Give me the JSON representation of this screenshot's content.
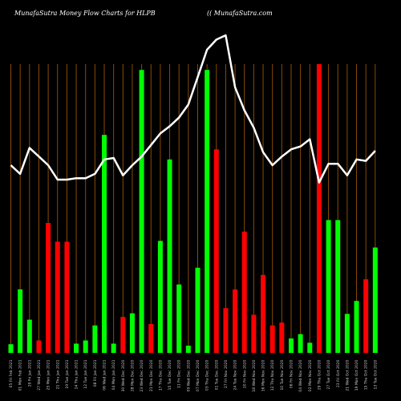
{
  "header": {
    "left": "MunafaSutra  Money Flow  Charts for HLPB",
    "right": "(( MunafaSutra.com"
  },
  "colors": {
    "background": "#000000",
    "grid": "#8a4b08",
    "up": "#00ff00",
    "down": "#ff0000",
    "line": "#ffffff"
  },
  "chart_data": {
    "type": "bar",
    "title": "MunafaSutra  Money Flow  Charts for HLPB",
    "ylim": [
      0,
      100
    ],
    "bars": [
      {
        "value": 3,
        "color": "green"
      },
      {
        "value": 22,
        "color": "green"
      },
      {
        "value": 11.5,
        "color": "green"
      },
      {
        "value": 4.3,
        "color": "red"
      },
      {
        "value": 45,
        "color": "red"
      },
      {
        "value": 38.5,
        "color": "red"
      },
      {
        "value": 38.5,
        "color": "red"
      },
      {
        "value": 3.2,
        "color": "green"
      },
      {
        "value": 4.3,
        "color": "green"
      },
      {
        "value": 9.5,
        "color": "green"
      },
      {
        "value": 75.5,
        "color": "green"
      },
      {
        "value": 3.2,
        "color": "green"
      },
      {
        "value": 12.5,
        "color": "red"
      },
      {
        "value": 13.7,
        "color": "green"
      },
      {
        "value": 98,
        "color": "green"
      },
      {
        "value": 10,
        "color": "red"
      },
      {
        "value": 38.8,
        "color": "green"
      },
      {
        "value": 67,
        "color": "green"
      },
      {
        "value": 23.7,
        "color": "green"
      },
      {
        "value": 2.5,
        "color": "green"
      },
      {
        "value": 29.5,
        "color": "green"
      },
      {
        "value": 98,
        "color": "green"
      },
      {
        "value": 70.5,
        "color": "red"
      },
      {
        "value": 15.5,
        "color": "red"
      },
      {
        "value": 22,
        "color": "red"
      },
      {
        "value": 42,
        "color": "red"
      },
      {
        "value": 13.2,
        "color": "red"
      },
      {
        "value": 27,
        "color": "red"
      },
      {
        "value": 9.5,
        "color": "red"
      },
      {
        "value": 10.5,
        "color": "red"
      },
      {
        "value": 5,
        "color": "green"
      },
      {
        "value": 6.5,
        "color": "green"
      },
      {
        "value": 3.5,
        "color": "green"
      },
      {
        "value": 100,
        "color": "red"
      },
      {
        "value": 46,
        "color": "green"
      },
      {
        "value": 46,
        "color": "green"
      },
      {
        "value": 13.5,
        "color": "green"
      },
      {
        "value": 18,
        "color": "green"
      },
      {
        "value": 25.5,
        "color": "red"
      },
      {
        "value": 36.5,
        "color": "green"
      }
    ],
    "line": [
      65,
      62,
      71,
      68,
      65,
      60,
      60,
      60.5,
      60.5,
      62,
      67,
      67.5,
      61.5,
      65,
      68,
      72,
      76,
      78.5,
      81.5,
      86,
      95.5,
      105,
      108.5,
      110,
      92,
      84,
      78,
      69.5,
      65,
      68,
      70.5,
      71.5,
      74,
      59,
      65.5,
      65.5,
      61.5,
      67,
      66.5,
      70
    ],
    "x_labels": [
      "05 Fri Feb 2021",
      "01 Mon Feb 2021",
      "29 Fri Jan 2021",
      "27 Wed Jan 2021",
      "25 Mon Jan 2021",
      "21 Thu Jan 2021",
      "19 Tue Jan 2021",
      "14 Thu Jan 2021",
      "12 Tue Jan 2021",
      "08 Fri Jan 2021",
      "06 Wed Jan 2021",
      "04 Mon Jan 2021",
      "30 Wed Dec 2020",
      "28 Mon Dec 2020",
      "23 Wed Dec 2020",
      "21 Mon Dec 2020",
      "17 Thu Dec 2020",
      "15 Tue Dec 2020",
      "11 Fri Dec 2020",
      "09 Wed Dec 2020",
      "07 Mon Dec 2020",
      "03 Thu Dec 2020",
      "01 Tue Dec 2020",
      "27 Fri Nov 2020",
      "24 Tue Nov 2020",
      "20 Fri Nov 2020",
      "18 Wed Nov 2020",
      "16 Mon Nov 2020",
      "12 Thu Nov 2020",
      "10 Tue Nov 2020",
      "06 Fri Nov 2020",
      "04 Wed Nov 2020",
      "02 Mon Nov 2020",
      "29 Thu Oct 2020",
      "27 Tue Oct 2020",
      "23 Fri Oct 2020",
      "21 Wed Oct 2020",
      "19 Mon Oct 2020",
      "15 Thu Oct 2020",
      "13 Tue Oct 2020"
    ]
  }
}
